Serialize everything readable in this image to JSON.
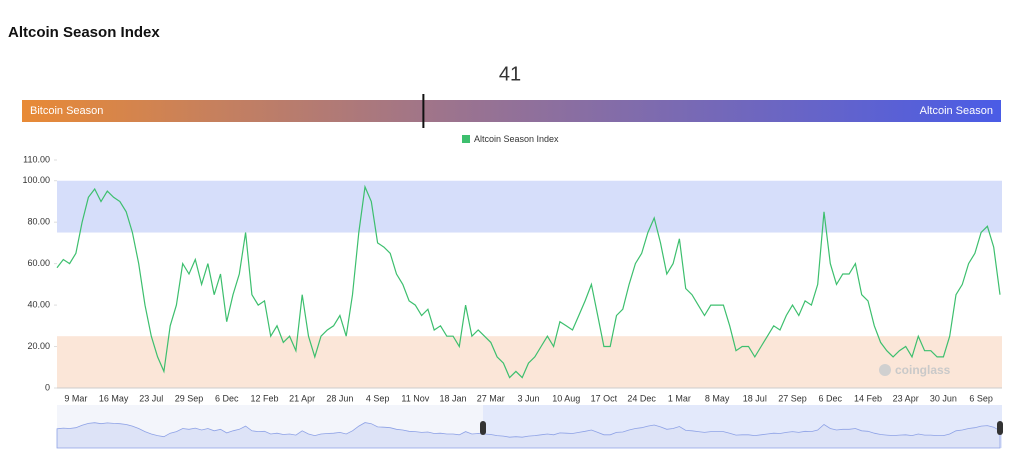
{
  "title": "Altcoin Season Index",
  "gauge": {
    "value": 41,
    "lim": [
      0,
      100
    ],
    "min_label": "Bitcoin Season",
    "max_label": "Altcoin Season"
  },
  "chart_data": {
    "type": "line",
    "categories": [
      null,
      null,
      null,
      "9 Mar",
      null,
      null,
      null,
      null,
      null,
      "16 May",
      null,
      null,
      null,
      null,
      null,
      "23 Jul",
      null,
      null,
      null,
      null,
      null,
      "29 Sep",
      null,
      null,
      null,
      null,
      null,
      "6 Dec",
      null,
      null,
      null,
      null,
      null,
      "12 Feb",
      null,
      null,
      null,
      null,
      null,
      "21 Apr",
      null,
      null,
      null,
      null,
      null,
      "28 Jun",
      null,
      null,
      null,
      null,
      null,
      "4 Sep",
      null,
      null,
      null,
      null,
      null,
      "11 Nov",
      null,
      null,
      null,
      null,
      null,
      "18 Jan",
      null,
      null,
      null,
      null,
      null,
      "27 Mar",
      null,
      null,
      null,
      null,
      null,
      "3 Jun",
      null,
      null,
      null,
      null,
      null,
      "10 Aug",
      null,
      null,
      null,
      null,
      null,
      "17 Oct",
      null,
      null,
      null,
      null,
      null,
      "24 Dec",
      null,
      null,
      null,
      null,
      null,
      "1 Mar",
      null,
      null,
      null,
      null,
      null,
      "8 May",
      null,
      null,
      null,
      null,
      null,
      "18 Jul",
      null,
      null,
      null,
      null,
      null,
      "27 Sep",
      null,
      null,
      null,
      null,
      null,
      "6 Dec",
      null,
      null,
      null,
      null,
      null,
      "14 Feb",
      null,
      null,
      null,
      null,
      null,
      "23 Apr",
      null,
      null,
      null,
      null,
      null,
      "30 Jun",
      null,
      null,
      null,
      null,
      null,
      "6 Sep",
      null,
      null,
      null
    ],
    "series": [
      {
        "name": "Altcoin Season Index",
        "color": "#3dbf6e",
        "values": [
          58,
          62,
          60,
          65,
          80,
          92,
          96,
          90,
          95,
          92,
          90,
          85,
          75,
          60,
          40,
          25,
          15,
          8,
          30,
          40,
          60,
          55,
          62,
          50,
          60,
          45,
          55,
          32,
          45,
          55,
          75,
          45,
          40,
          42,
          25,
          30,
          22,
          25,
          18,
          45,
          25,
          15,
          25,
          28,
          30,
          35,
          25,
          45,
          75,
          97,
          90,
          70,
          68,
          65,
          55,
          50,
          42,
          40,
          35,
          38,
          28,
          30,
          25,
          25,
          20,
          40,
          25,
          28,
          25,
          22,
          15,
          12,
          5,
          8,
          5,
          12,
          15,
          20,
          25,
          20,
          32,
          30,
          28,
          35,
          42,
          50,
          35,
          20,
          20,
          35,
          38,
          50,
          60,
          65,
          75,
          82,
          70,
          55,
          60,
          72,
          48,
          45,
          40,
          35,
          40,
          40,
          40,
          30,
          18,
          20,
          20,
          15,
          20,
          25,
          30,
          28,
          35,
          40,
          35,
          42,
          40,
          50,
          85,
          60,
          50,
          55,
          55,
          60,
          45,
          42,
          30,
          22,
          18,
          15,
          18,
          20,
          15,
          25,
          18,
          18,
          15,
          15,
          25,
          45,
          50,
          60,
          65,
          75,
          78,
          68,
          45
        ]
      }
    ],
    "ylim": [
      0,
      110
    ],
    "yticks": [
      0,
      {
        "value": 20,
        "label": "20.00"
      },
      {
        "value": 40,
        "label": "40.00"
      },
      {
        "value": 60,
        "label": "60.00"
      },
      {
        "value": 80,
        "label": "80.00"
      },
      {
        "value": 100,
        "label": "100.00"
      },
      {
        "value": 110,
        "label": "110.00"
      }
    ],
    "bands": [
      {
        "from": 75,
        "to": 100,
        "color": "#d6defa"
      },
      {
        "from": 0,
        "to": 25,
        "color": "#fbe6d8"
      }
    ],
    "watermark": "coinglass"
  }
}
